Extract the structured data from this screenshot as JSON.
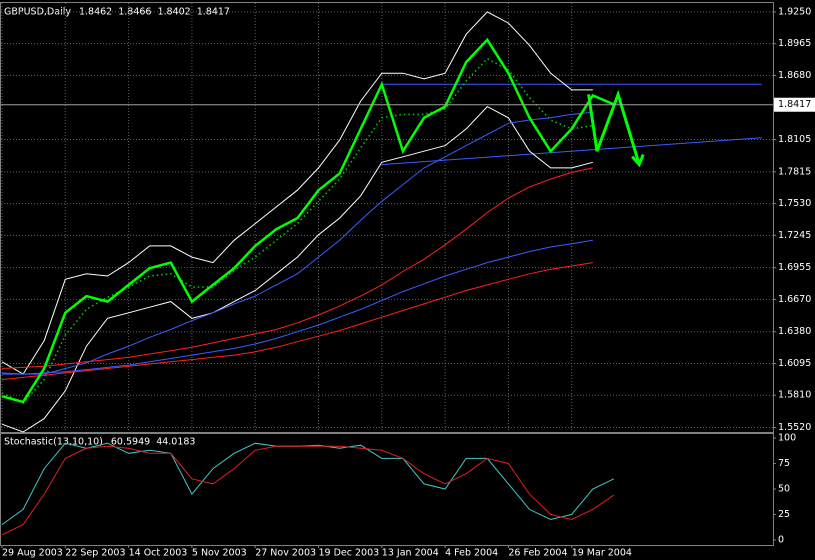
{
  "chart_data": [
    {
      "type": "line",
      "title": "GBPUSD,Daily",
      "header_values": [
        1.8462,
        1.8466,
        1.8402,
        1.8417
      ],
      "categories": [
        "29 Aug 2003",
        null,
        null,
        "22 Sep 2003",
        null,
        null,
        "14 Oct 2003",
        null,
        null,
        "5 Nov 2003",
        null,
        null,
        "27 Nov 2003",
        null,
        null,
        "19 Dec 2003",
        null,
        null,
        "13 Jan 2004",
        null,
        null,
        "4 Feb 2004",
        null,
        null,
        "26 Feb 2004",
        null,
        null,
        "19 Mar 2004",
        null,
        null
      ],
      "series": [
        {
          "color": "#ffffff",
          "values": [
            1.611,
            1.6,
            1.63,
            1.685,
            1.69,
            1.688,
            1.7,
            1.715,
            1.715,
            1.705,
            1.7,
            1.72,
            1.735,
            1.75,
            1.765,
            1.785,
            1.81,
            1.845,
            1.87,
            1.87,
            1.865,
            1.87,
            1.905,
            1.925,
            1.915,
            1.895,
            1.87,
            1.855,
            1.855,
            null
          ]
        },
        {
          "color": "#ffffff",
          "values": [
            1.555,
            1.548,
            1.56,
            1.585,
            1.625,
            1.65,
            1.655,
            1.66,
            1.665,
            1.65,
            1.655,
            1.665,
            1.675,
            1.69,
            1.705,
            1.725,
            1.74,
            1.76,
            1.79,
            1.795,
            1.8,
            1.805,
            1.82,
            1.84,
            1.83,
            1.8,
            1.785,
            1.785,
            1.79,
            null
          ]
        },
        {
          "color": "#00c800",
          "dotted": true,
          "values": [
            1.583,
            1.574,
            1.595,
            1.635,
            1.658,
            1.669,
            1.678,
            1.688,
            1.69,
            1.678,
            1.678,
            1.693,
            1.705,
            1.72,
            1.735,
            1.755,
            1.775,
            1.803,
            1.83,
            1.833,
            1.833,
            1.838,
            1.863,
            1.883,
            1.873,
            1.848,
            1.828,
            1.82,
            1.823,
            null
          ]
        },
        {
          "color": "#3c5cff",
          "values": [
            1.601,
            1.6,
            1.6,
            1.605,
            1.61,
            1.618,
            1.625,
            1.633,
            1.64,
            1.648,
            1.655,
            1.663,
            1.67,
            1.68,
            1.69,
            1.705,
            1.72,
            1.738,
            1.755,
            1.77,
            1.785,
            1.795,
            1.805,
            1.815,
            1.825,
            1.828,
            1.83,
            1.833,
            1.835,
            null
          ]
        },
        {
          "color": "#ff2020",
          "values": [
            1.605,
            1.606,
            1.607,
            1.609,
            1.611,
            1.613,
            1.615,
            1.618,
            1.621,
            1.624,
            1.628,
            1.632,
            1.636,
            1.64,
            1.646,
            1.653,
            1.661,
            1.67,
            1.68,
            1.692,
            1.703,
            1.716,
            1.73,
            1.745,
            1.758,
            1.768,
            1.775,
            1.781,
            1.785,
            null
          ]
        },
        {
          "color": "#3c5cff",
          "values": [
            1.6,
            1.6,
            1.601,
            1.602,
            1.604,
            1.606,
            1.608,
            1.611,
            1.614,
            1.617,
            1.62,
            1.623,
            1.627,
            1.632,
            1.638,
            1.644,
            1.651,
            1.658,
            1.666,
            1.674,
            1.681,
            1.688,
            1.694,
            1.7,
            1.705,
            1.71,
            1.714,
            1.717,
            1.72,
            null
          ]
        },
        {
          "color": "#ff2020",
          "values": [
            1.595,
            1.597,
            1.599,
            1.601,
            1.603,
            1.605,
            1.607,
            1.609,
            1.611,
            1.613,
            1.615,
            1.617,
            1.62,
            1.624,
            1.629,
            1.634,
            1.639,
            1.645,
            1.651,
            1.657,
            1.663,
            1.669,
            1.675,
            1.68,
            1.685,
            1.69,
            1.694,
            1.697,
            1.7,
            null
          ]
        },
        {
          "color": "#00ff00",
          "width": 2.5,
          "values": [
            1.58,
            1.575,
            1.605,
            1.655,
            1.67,
            1.665,
            1.68,
            1.695,
            1.7,
            1.665,
            1.68,
            1.695,
            1.715,
            1.73,
            1.74,
            1.765,
            1.78,
            1.82,
            1.86,
            1.8,
            1.83,
            1.84,
            1.88,
            1.9,
            1.87,
            1.83,
            1.8,
            1.82,
            1.85,
            1.842
          ]
        }
      ],
      "trendlines": [
        {
          "color": "#3c5cff",
          "x": [
            18,
            36
          ],
          "values": [
            1.86,
            1.86
          ]
        },
        {
          "color": "#3c5cff",
          "x": [
            18,
            36
          ],
          "values": [
            1.788,
            1.812
          ]
        }
      ],
      "forecast": {
        "color": "#00ff00",
        "x": [
          27.8,
          28.2,
          29.2,
          30.2
        ],
        "values": [
          1.851,
          1.8,
          1.851,
          1.788
        ]
      },
      "last_price": 1.8417,
      "ylim": [
        1.548,
        1.933
      ],
      "yticks": [
        {
          "value": 1.925,
          "label": "1.9250"
        },
        {
          "value": 1.8965,
          "label": "1.8965"
        },
        {
          "value": 1.868,
          "label": "1.8680"
        },
        {
          "value": 1.8105,
          "label": "1.8105"
        },
        {
          "value": 1.7815,
          "label": "1.7815"
        },
        {
          "value": 1.753,
          "label": "1.7530"
        },
        {
          "value": 1.7245,
          "label": "1.7245"
        },
        {
          "value": 1.6955,
          "label": "1.6955"
        },
        {
          "value": 1.667,
          "label": "1.6670"
        },
        {
          "value": 1.638,
          "label": "1.6380"
        },
        {
          "value": 1.6095,
          "label": "1.6095"
        },
        {
          "value": 1.581,
          "label": "1.5810"
        },
        {
          "value": 1.552,
          "label": "1.5520"
        }
      ],
      "grid": true
    },
    {
      "type": "line",
      "title": "Stochastic(13,10,10)",
      "header_values": [
        60.5949,
        44.0183
      ],
      "series": [
        {
          "color": "#40c8c8",
          "values": [
            15,
            30,
            70,
            95,
            90,
            95,
            85,
            88,
            85,
            45,
            70,
            85,
            95,
            92,
            92,
            93,
            90,
            93,
            80,
            80,
            55,
            50,
            80,
            80,
            55,
            30,
            20,
            25,
            50,
            60
          ]
        },
        {
          "color": "#e02020",
          "values": [
            5,
            15,
            45,
            80,
            90,
            92,
            90,
            85,
            85,
            60,
            55,
            70,
            88,
            92,
            92,
            92,
            92,
            90,
            88,
            80,
            65,
            55,
            65,
            80,
            75,
            45,
            25,
            20,
            30,
            44
          ]
        }
      ],
      "ylim": [
        -5,
        104
      ],
      "yticks": [
        0,
        25,
        50,
        75,
        100
      ]
    }
  ]
}
